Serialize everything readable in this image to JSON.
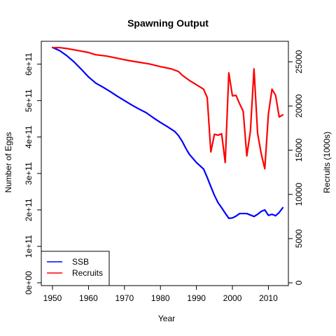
{
  "chart_data": {
    "type": "line",
    "title": "Spawning Output",
    "xlabel": "Year",
    "ylabel": "Number of Eggs",
    "y2label": "Recruits (1000s)",
    "xlim": [
      1950,
      2014
    ],
    "ylim": [
      0,
      655000000000
    ],
    "y2lim": [
      0,
      27000
    ],
    "xticks": [
      1950,
      1960,
      1970,
      1980,
      1990,
      2000,
      2010
    ],
    "xtick_labels": [
      "1950",
      "1960",
      "1970",
      "1980",
      "1990",
      "2000",
      "2010"
    ],
    "yticks": [
      0,
      100000000000,
      200000000000,
      300000000000,
      400000000000,
      500000000000,
      600000000000
    ],
    "ytick_labels": [
      "0e+00",
      "1e+11",
      "2e+11",
      "3e+11",
      "4e+11",
      "5e+11",
      "6e+11"
    ],
    "y2ticks": [
      0,
      5000,
      10000,
      15000,
      20000,
      25000
    ],
    "y2tick_labels": [
      "0",
      "5000",
      "10000",
      "15000",
      "20000",
      "25000"
    ],
    "grid": false,
    "legend_position": "bottom-left",
    "series": [
      {
        "name": "SSB",
        "axis": "left",
        "color": "#0000ff",
        "x": [
          1950,
          1952,
          1954,
          1956,
          1958,
          1960,
          1962,
          1964,
          1966,
          1968,
          1970,
          1972,
          1974,
          1976,
          1978,
          1980,
          1982,
          1984,
          1985,
          1986,
          1987,
          1988,
          1990,
          1992,
          1993,
          1994,
          1995,
          1996,
          1997,
          1998,
          1999,
          2000,
          2001,
          2002,
          2003,
          2004,
          2005,
          2006,
          2007,
          2008,
          2009,
          2010,
          2011,
          2012,
          2013,
          2014
        ],
        "values": [
          646000000000,
          637000000000,
          623000000000,
          606000000000,
          586000000000,
          565000000000,
          548000000000,
          537000000000,
          525000000000,
          512000000000,
          500000000000,
          488000000000,
          477000000000,
          467000000000,
          453000000000,
          440000000000,
          428000000000,
          415000000000,
          404000000000,
          389000000000,
          370000000000,
          353000000000,
          330000000000,
          312000000000,
          289000000000,
          264000000000,
          240000000000,
          220000000000,
          206000000000,
          191000000000,
          177000000000,
          178000000000,
          183000000000,
          190000000000,
          190000000000,
          190000000000,
          186000000000,
          182000000000,
          188000000000,
          196000000000,
          200000000000,
          185000000000,
          188000000000,
          184000000000,
          193000000000,
          206000000000
        ]
      },
      {
        "name": "Recruits",
        "axis": "right",
        "color": "#ff0000",
        "x": [
          1950,
          1952,
          1954,
          1956,
          1958,
          1960,
          1962,
          1965,
          1968,
          1971,
          1974,
          1977,
          1980,
          1983,
          1985,
          1986,
          1988,
          1990,
          1992,
          1993,
          1994,
          1995,
          1996,
          1997,
          1998,
          1999,
          2000,
          2001,
          2002,
          2003,
          2004,
          2005,
          2006,
          2007,
          2008,
          2009,
          2010,
          2011,
          2012,
          2013,
          2014
        ],
        "values": [
          26600,
          26600,
          26500,
          26350,
          26200,
          26050,
          25800,
          25650,
          25400,
          25150,
          24950,
          24750,
          24450,
          24200,
          23900,
          23500,
          22900,
          22400,
          21900,
          20950,
          14800,
          16800,
          16700,
          16850,
          13600,
          23750,
          21150,
          21200,
          20250,
          19400,
          14350,
          17150,
          24200,
          16900,
          14600,
          12900,
          19100,
          21900,
          21200,
          18750,
          19000
        ]
      }
    ]
  }
}
